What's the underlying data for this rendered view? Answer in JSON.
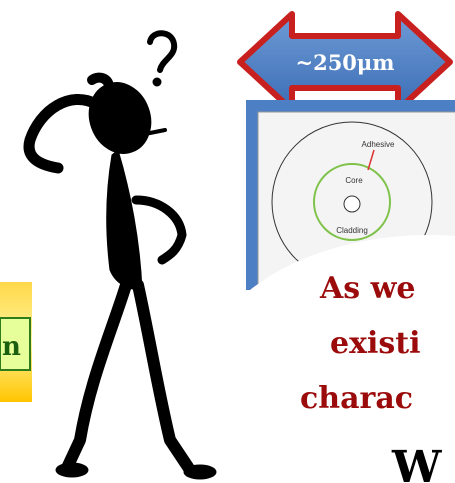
{
  "arrow": {
    "label": "~250μm"
  },
  "diagram": {
    "labels": [
      "Adhesive",
      "Core",
      "Cladding"
    ]
  },
  "side_box": {
    "text": "n"
  },
  "bubble": {
    "lines": [
      "As we",
      "existi",
      "charac"
    ],
    "last_line": "W"
  }
}
